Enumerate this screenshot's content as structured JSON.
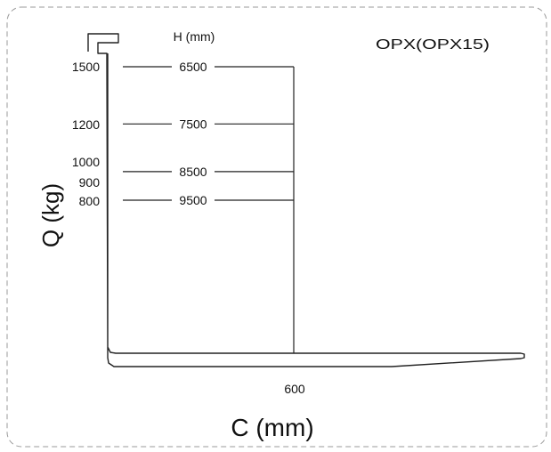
{
  "chart_data": {
    "type": "line",
    "title": "OPX(OPX15)",
    "ylabel": "Q (kg)",
    "xlabel": "C (mm)",
    "series_label": "H (mm)",
    "x_tick": "600",
    "y_ticks": [
      "1500",
      "1200",
      "1000",
      "900",
      "800"
    ],
    "series": [
      {
        "name": "6500",
        "q": 1500
      },
      {
        "name": "7500",
        "q": 1200
      },
      {
        "name": "8500",
        "q": 950
      },
      {
        "name": "9500",
        "q": 800
      }
    ],
    "load_center_mm": 600,
    "grid": false
  }
}
